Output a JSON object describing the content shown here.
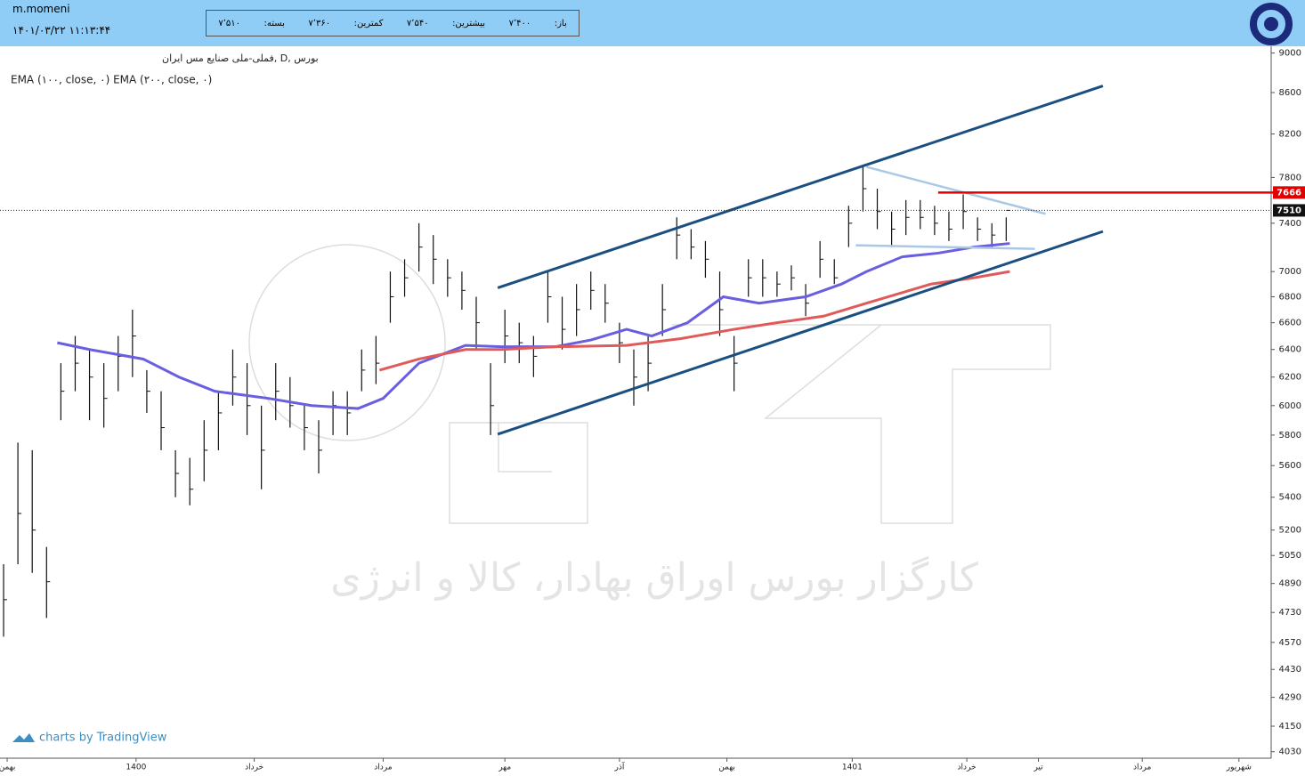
{
  "header": {
    "user": "m.momeni",
    "datetime": "۱۴۰۱/۰۳/۲۲ ۱۱:۱۳:۴۴",
    "quote": [
      {
        "label": "باز:",
        "value": "۷٬۴۰۰"
      },
      {
        "label": "بیشترین:",
        "value": "۷٬۵۴۰"
      },
      {
        "label": "کمترین:",
        "value": "۷٬۳۶۰"
      },
      {
        "label": "بسته:",
        "value": "۷٬۵۱۰"
      }
    ]
  },
  "chart_data": {
    "type": "ohlc",
    "legend": [
      "بورس ,D ,فملی-ملی صنایع مس ایران",
      "EMA (۱۰۰, close, ۰) EMA (۲۰۰, close, ۰)"
    ],
    "watermark": "کارگزار بورس اوراق بهادار، کالا و انرژی",
    "credit": "charts by TradingView",
    "log_scale": true,
    "ylim": [
      4000,
      9070
    ],
    "yticks": [
      9000,
      8600,
      8200,
      7800,
      7400,
      7000,
      6800,
      6600,
      6400,
      6200,
      6000,
      5800,
      5600,
      5400,
      5200,
      5050,
      4890,
      4730,
      4570,
      4430,
      4290,
      4150,
      4030
    ],
    "xlim": [
      0,
      355
    ],
    "xticks": [
      {
        "value": 2,
        "label": "بهمن"
      },
      {
        "value": 38,
        "label": "1400"
      },
      {
        "value": 71,
        "label": "خرداد"
      },
      {
        "value": 107,
        "label": "مرداد"
      },
      {
        "value": 141,
        "label": "مهر"
      },
      {
        "value": 173,
        "label": "آذر"
      },
      {
        "value": 203,
        "label": "بهمن"
      },
      {
        "value": 238,
        "label": "1401"
      },
      {
        "value": 270,
        "label": "خرداد"
      },
      {
        "value": 290,
        "label": "تیر"
      },
      {
        "value": 319,
        "label": "مرداد"
      },
      {
        "value": 346,
        "label": "شهریور"
      }
    ],
    "bar_color": "#111111",
    "bars": {
      "x": [
        1,
        5,
        9,
        13,
        17,
        21,
        25,
        29,
        33,
        37,
        41,
        45,
        49,
        53,
        57,
        61,
        65,
        69,
        73,
        77,
        81,
        85,
        89,
        93,
        97,
        101,
        105,
        109,
        113,
        117,
        121,
        125,
        129,
        133,
        137,
        141,
        145,
        149,
        153,
        157,
        161,
        165,
        169,
        173,
        177,
        181,
        185,
        189,
        193,
        197,
        201,
        205,
        209,
        213,
        217,
        221,
        225,
        229,
        233,
        237,
        241,
        245,
        249,
        253,
        257,
        261,
        265,
        269,
        273,
        277,
        281
      ],
      "high": [
        5000,
        5750,
        5700,
        5100,
        6300,
        6500,
        6400,
        6300,
        6500,
        6700,
        6250,
        6100,
        5700,
        5650,
        5900,
        6100,
        6400,
        6300,
        6000,
        6300,
        6200,
        6000,
        5900,
        6100,
        6100,
        6400,
        6500,
        7000,
        7100,
        7400,
        7300,
        7100,
        7000,
        6800,
        6300,
        6700,
        6600,
        6500,
        7000,
        6800,
        6900,
        7000,
        6900,
        6600,
        6400,
        6500,
        6900,
        7450,
        7350,
        7250,
        7000,
        6500,
        7100,
        7100,
        7000,
        7050,
        6900,
        7250,
        7100,
        7550,
        7900,
        7700,
        7500,
        7600,
        7600,
        7550,
        7500,
        7650,
        7450,
        7400,
        7450
      ],
      "low": [
        4600,
        5000,
        4950,
        4700,
        5900,
        6100,
        5900,
        5850,
        6100,
        6200,
        5950,
        5700,
        5400,
        5350,
        5500,
        5700,
        6000,
        5800,
        5450,
        5900,
        5850,
        5700,
        5550,
        5800,
        5800,
        6100,
        6150,
        6600,
        6800,
        7000,
        6900,
        6800,
        6700,
        6400,
        5800,
        6300,
        6300,
        6200,
        6600,
        6400,
        6500,
        6700,
        6600,
        6300,
        6000,
        6100,
        6500,
        7100,
        7100,
        6950,
        6500,
        6100,
        6800,
        6800,
        6800,
        6850,
        6650,
        6950,
        6900,
        7200,
        7500,
        7350,
        7200,
        7300,
        7350,
        7300,
        7250,
        7350,
        7250,
        7200,
        7250
      ],
      "close": [
        4800,
        5300,
        5200,
        4900,
        6100,
        6300,
        6200,
        6050,
        6350,
        6500,
        6100,
        5850,
        5550,
        5450,
        5700,
        5950,
        6200,
        6000,
        5700,
        6100,
        6000,
        5850,
        5700,
        6000,
        5950,
        6250,
        6300,
        6800,
        6950,
        7200,
        7100,
        6950,
        6850,
        6600,
        6000,
        6500,
        6450,
        6350,
        6800,
        6550,
        6700,
        6850,
        6750,
        6450,
        6200,
        6300,
        6700,
        7300,
        7200,
        7100,
        6700,
        6300,
        6950,
        6950,
        6900,
        6950,
        6750,
        7100,
        6950,
        7400,
        7700,
        7500,
        7350,
        7450,
        7450,
        7400,
        7350,
        7500,
        7350,
        7300,
        7510
      ]
    },
    "series": [
      {
        "name": "EMA (۱۰۰, close, ۰)",
        "color": "#6a5ee0",
        "x": [
          16,
          25,
          40,
          50,
          60,
          75,
          87,
          100,
          107,
          117,
          130,
          140,
          155,
          165,
          175,
          182,
          192,
          202,
          212,
          225,
          235,
          242,
          252,
          262,
          272,
          282
        ],
        "values": [
          6450,
          6400,
          6330,
          6200,
          6100,
          6050,
          6000,
          5980,
          6050,
          6300,
          6430,
          6420,
          6420,
          6470,
          6550,
          6500,
          6600,
          6800,
          6750,
          6800,
          6900,
          7000,
          7120,
          7150,
          7200,
          7230
        ]
      },
      {
        "name": "EMA (۲۰۰, close, ۰)",
        "color": "#e05a5a",
        "x": [
          106,
          117,
          130,
          140,
          155,
          175,
          190,
          205,
          217,
          230,
          242,
          260,
          272,
          282
        ],
        "values": [
          6250,
          6330,
          6400,
          6400,
          6420,
          6430,
          6480,
          6550,
          6600,
          6650,
          6750,
          6900,
          6950,
          7000
        ]
      }
    ],
    "drawings": [
      {
        "color": "#1a4f80",
        "x": [
          139,
          308
        ],
        "y": [
          6870,
          8666
        ]
      },
      {
        "color": "#1a4f80",
        "x": [
          139,
          308
        ],
        "y": [
          5806,
          7330
        ]
      },
      {
        "color": "#a9c8e6",
        "x": [
          242,
          292
        ],
        "y": [
          7895,
          7480
        ]
      },
      {
        "color": "#a9c8e6",
        "x": [
          239,
          289
        ],
        "y": [
          7215,
          7185
        ]
      },
      {
        "color": "#e00000",
        "x": [
          262,
          357
        ],
        "y": [
          7666,
          7666
        ]
      }
    ],
    "price_labels": [
      {
        "value": 7666,
        "color": "#e00000"
      },
      {
        "value": 7510,
        "color": "#111111"
      }
    ]
  }
}
